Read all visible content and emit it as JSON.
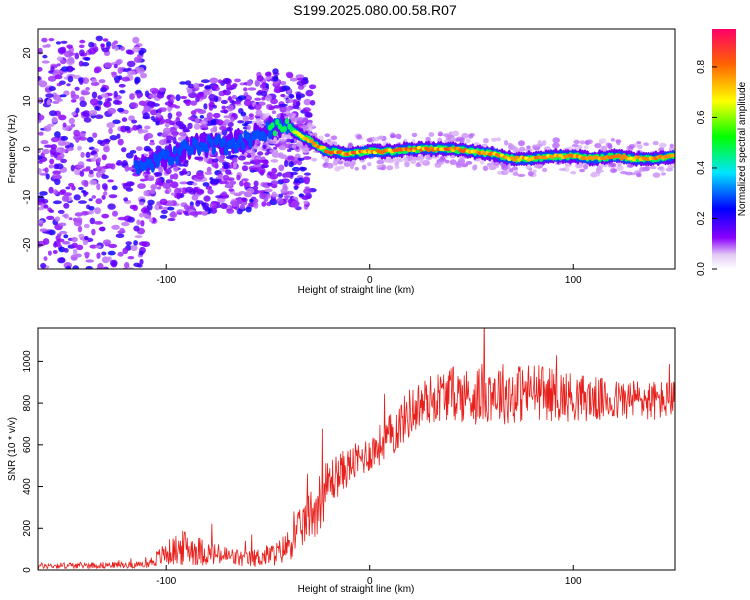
{
  "title": "S199.2025.080.00.58.R07",
  "chart_data": [
    {
      "type": "heatmap",
      "xlabel": "Height of straight line (km)",
      "ylabel": "Frequency (Hz)",
      "xlim": [
        -163,
        150
      ],
      "ylim": [
        -25,
        25
      ],
      "xticks": [
        -100,
        0,
        100
      ],
      "yticks": [
        -20,
        -10,
        0,
        10,
        20
      ],
      "colorbar": {
        "label": "Normalized spectral amplitude",
        "range": [
          0,
          0.95
        ],
        "ticks": [
          0.0,
          0.2,
          0.4,
          0.6,
          0.8
        ]
      },
      "ridge": {
        "x": [
          -110,
          -100,
          -90,
          -80,
          -70,
          -60,
          -50,
          -45,
          -40,
          -35,
          -30,
          -25,
          -20,
          -10,
          0,
          10,
          20,
          30,
          40,
          50,
          60,
          70,
          80,
          90,
          100,
          110,
          120,
          130,
          140,
          150
        ],
        "frequency": [
          -3,
          -2,
          0,
          1,
          1,
          2,
          4,
          5,
          5,
          3,
          2,
          0.5,
          -0.5,
          -1,
          -0.5,
          -0.5,
          0,
          0,
          0,
          -0.5,
          -1,
          -2,
          -2,
          -1.5,
          -1.5,
          -2,
          -1.5,
          -2,
          -2,
          -1.5
        ],
        "amplitude": [
          0.3,
          0.35,
          0.3,
          0.35,
          0.35,
          0.3,
          0.45,
          0.55,
          0.6,
          0.7,
          0.8,
          0.85,
          0.9,
          0.9,
          0.85,
          0.85,
          0.9,
          0.85,
          0.9,
          0.85,
          0.85,
          0.8,
          0.85,
          0.8,
          0.85,
          0.8,
          0.85,
          0.8,
          0.85,
          0.8
        ]
      }
    },
    {
      "type": "line",
      "xlabel": "Height of straight line (km)",
      "ylabel": "SNR (10 * v/v)",
      "xlim": [
        -163,
        150
      ],
      "ylim": [
        0,
        1160
      ],
      "xticks": [
        -100,
        0,
        100
      ],
      "yticks": [
        0,
        200,
        400,
        600,
        800,
        1000
      ],
      "series_color": "#e8201c",
      "envelope": {
        "x": [
          -163,
          -110,
          -100,
          -90,
          -80,
          -60,
          -45,
          -40,
          -35,
          -30,
          -25,
          -20,
          -10,
          0,
          10,
          20,
          30,
          40,
          50,
          60,
          70,
          80,
          90,
          100,
          110,
          120,
          130,
          140,
          150
        ],
        "mean": [
          20,
          25,
          80,
          110,
          80,
          50,
          80,
          120,
          180,
          260,
          320,
          420,
          500,
          560,
          640,
          760,
          820,
          850,
          830,
          860,
          840,
          860,
          840,
          830,
          820,
          810,
          820,
          810,
          820
        ],
        "spread": [
          15,
          15,
          60,
          90,
          60,
          40,
          60,
          80,
          100,
          120,
          150,
          120,
          90,
          90,
          110,
          120,
          120,
          130,
          140,
          150,
          150,
          140,
          130,
          120,
          110,
          100,
          100,
          100,
          90
        ]
      }
    }
  ]
}
